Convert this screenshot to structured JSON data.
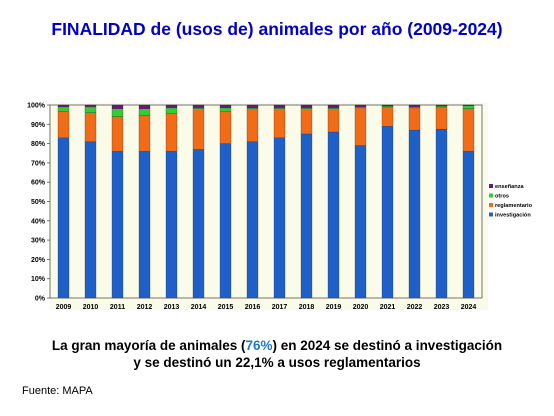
{
  "title": "FINALIDAD de (usos de) animales por año (2009-2024)",
  "summary": {
    "part1": "La gran mayoría de animales (",
    "highlight": "76%",
    "part2": ") en 2024 se destinó a investigación",
    "line2": "y se destinó un 22,1% a usos reglamentarios"
  },
  "source": "Fuente: MAPA",
  "chart_data": {
    "type": "bar",
    "stacked": true,
    "categories": [
      "2009",
      "2010",
      "2011",
      "2012",
      "2013",
      "2014",
      "2015",
      "2016",
      "2017",
      "2018",
      "2019",
      "2020",
      "2021",
      "2022",
      "2023",
      "2024"
    ],
    "y_ticks": [
      "0%",
      "10%",
      "20%",
      "30%",
      "40%",
      "50%",
      "60%",
      "70%",
      "80%",
      "90%",
      "100%"
    ],
    "ylim": [
      0,
      100
    ],
    "grid": false,
    "legend_position": "right",
    "series": [
      {
        "name": "investigación",
        "color": "#1f5fc8",
        "values": [
          83,
          81,
          76,
          76,
          76,
          77,
          80,
          81,
          83,
          85,
          86,
          79,
          89,
          87,
          87.5,
          76
        ]
      },
      {
        "name": "reglamentario",
        "color": "#f26b16",
        "values": [
          13.5,
          15,
          18,
          18.5,
          19.5,
          21,
          16.5,
          17,
          15,
          13,
          12,
          19.5,
          10,
          11.5,
          11.5,
          22.1
        ]
      },
      {
        "name": "otros",
        "color": "#33cc33",
        "values": [
          2.5,
          3,
          4,
          3.5,
          3,
          0.5,
          2,
          0.5,
          0.5,
          0.5,
          0.5,
          0.5,
          0.5,
          0.5,
          0.5,
          1.5
        ]
      },
      {
        "name": "enseñanza",
        "color": "#66197a",
        "values": [
          1,
          1,
          2,
          2,
          1.5,
          1.5,
          1.5,
          1.5,
          1.5,
          1.5,
          1.5,
          1,
          0.5,
          1,
          0.5,
          0.4
        ]
      }
    ]
  }
}
